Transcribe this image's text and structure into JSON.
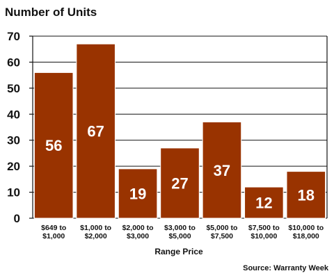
{
  "chart_data": {
    "type": "bar",
    "title": "Number of Units",
    "xlabel": "Range Price",
    "ylabel": "",
    "source": "Source: Warranty Week",
    "categories": [
      [
        "$649 to",
        "$1,000"
      ],
      [
        "$1,000 to",
        "$2,000"
      ],
      [
        "$2,000 to",
        "$3,000"
      ],
      [
        "$3,000 to",
        "$5,000"
      ],
      [
        "$5,000 to",
        "$7,500"
      ],
      [
        "$7,500 to",
        "$10,000"
      ],
      [
        "$10,000 to",
        "$18,000"
      ]
    ],
    "values": [
      56,
      67,
      19,
      27,
      37,
      12,
      18
    ],
    "ylim": [
      0,
      70
    ],
    "yticks": [
      0,
      10,
      20,
      30,
      40,
      50,
      60,
      70
    ],
    "grid": true,
    "legend": "none",
    "bar_color": "#993300",
    "bar_edge_color": "#ffffff",
    "grid_color": "#111111"
  }
}
